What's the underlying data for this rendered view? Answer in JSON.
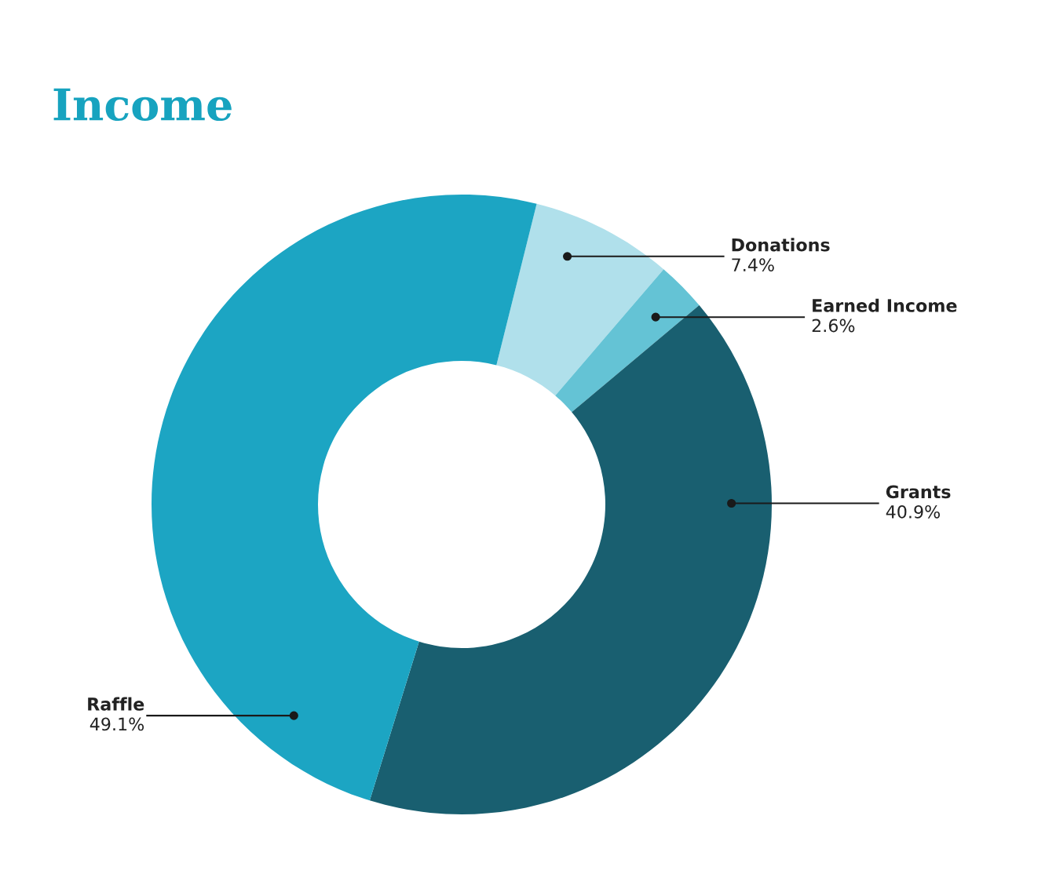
{
  "chart_data": {
    "type": "donut",
    "title": "Income",
    "categories": [
      "Donations",
      "Earned Income",
      "Grants",
      "Raffle"
    ],
    "values": [
      7.4,
      2.6,
      40.9,
      49.1
    ],
    "colors": [
      "#b0e0eb",
      "#64c3d5",
      "#195f70",
      "#1ca5c3"
    ],
    "value_labels": [
      "7.4%",
      "2.6%",
      "40.9%",
      "49.1%"
    ],
    "legend": false
  }
}
